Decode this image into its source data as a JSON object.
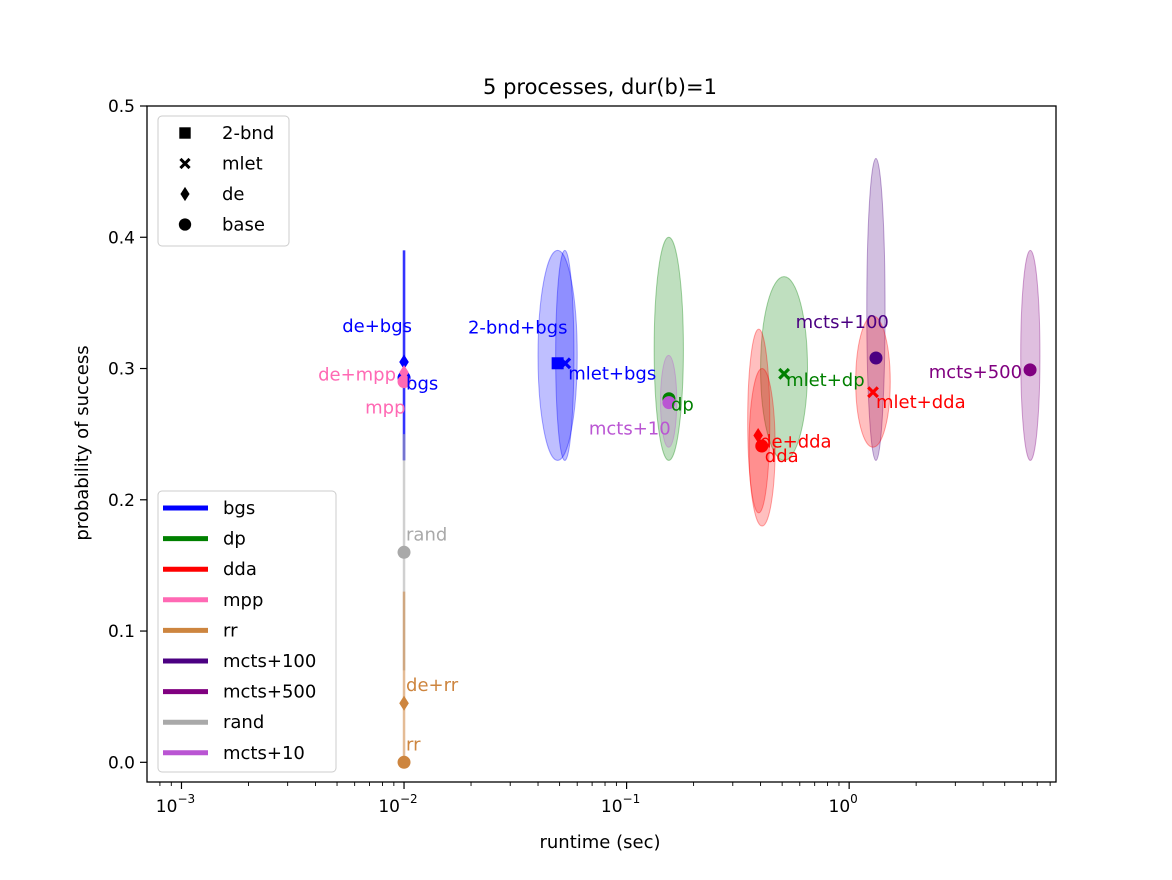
{
  "chart_data": {
    "type": "scatter",
    "title": "5 processes, dur(b)=1",
    "xlabel": "runtime (sec)",
    "ylabel": "probability of success",
    "xscale": "log",
    "xlim": [
      0.0007,
      8.5
    ],
    "ylim": [
      -0.015,
      0.5
    ],
    "xticks": [
      {
        "value": 0.001,
        "base": "10",
        "exp": "−3"
      },
      {
        "value": 0.01,
        "base": "10",
        "exp": "−2"
      },
      {
        "value": 0.1,
        "base": "10",
        "exp": "−1"
      },
      {
        "value": 1,
        "base": "10",
        "exp": "0"
      }
    ],
    "yticks": [
      {
        "value": 0.0,
        "label": "0.0"
      },
      {
        "value": 0.1,
        "label": "0.1"
      },
      {
        "value": 0.2,
        "label": "0.2"
      },
      {
        "value": 0.3,
        "label": "0.3"
      },
      {
        "value": 0.4,
        "label": "0.4"
      },
      {
        "value": 0.5,
        "label": "0.5"
      }
    ],
    "marker_legend": {
      "placement": "top-left",
      "entries": [
        {
          "marker": "square",
          "label": "2-bnd"
        },
        {
          "marker": "x",
          "label": "mlet"
        },
        {
          "marker": "diamond",
          "label": "de"
        },
        {
          "marker": "circle",
          "label": "base"
        }
      ]
    },
    "color_legend": {
      "placement": "lower-left",
      "entries": [
        {
          "label": "bgs",
          "color": "#0000ff"
        },
        {
          "label": "dp",
          "color": "#008000"
        },
        {
          "label": "dda",
          "color": "#ff0000"
        },
        {
          "label": "mpp",
          "color": "#ff69b4"
        },
        {
          "label": "rr",
          "color": "#cd853f"
        },
        {
          "label": "mcts+100",
          "color": "#4b0082"
        },
        {
          "label": "mcts+500",
          "color": "#800080"
        },
        {
          "label": "rand",
          "color": "#a9a9a9"
        },
        {
          "label": "mcts+10",
          "color": "#ba55d3"
        }
      ]
    },
    "points": [
      {
        "label": "de+bgs",
        "algo": "bgs",
        "marker": "diamond",
        "x": 0.01,
        "y": 0.305,
        "x_err": [
          0.01,
          0.01
        ],
        "y_err": [
          0.23,
          0.39
        ],
        "label_pos": "above-left"
      },
      {
        "label": "bgs",
        "algo": "bgs",
        "marker": "circle",
        "x": 0.01,
        "y": 0.293,
        "x_err": [
          0.01,
          0.01
        ],
        "y_err": [
          0.23,
          0.39
        ],
        "label_pos": "right"
      },
      {
        "label": "de+mpp",
        "algo": "mpp",
        "marker": "diamond",
        "x": 0.01,
        "y": 0.297,
        "label_pos": "left"
      },
      {
        "label": "mpp",
        "algo": "mpp",
        "marker": "circle",
        "x": 0.01,
        "y": 0.29,
        "label_pos": "below-left"
      },
      {
        "label": "2-bnd+bgs",
        "algo": "bgs",
        "marker": "square",
        "x": 0.049,
        "y": 0.304,
        "x_err": [
          0.04,
          0.06
        ],
        "y_err": [
          0.23,
          0.39
        ],
        "label_pos": "above-left"
      },
      {
        "label": "mlet+bgs",
        "algo": "bgs",
        "marker": "x",
        "x": 0.053,
        "y": 0.304,
        "x_err": [
          0.048,
          0.058
        ],
        "y_err": [
          0.23,
          0.39
        ],
        "label_pos": "below-right"
      },
      {
        "label": "dp",
        "algo": "dp",
        "marker": "circle",
        "x": 0.155,
        "y": 0.277,
        "x_err": [
          0.133,
          0.18
        ],
        "y_err": [
          0.23,
          0.4
        ],
        "label_pos": "right"
      },
      {
        "label": "mcts+10",
        "algo": "mcts+10",
        "marker": "circle",
        "x": 0.155,
        "y": 0.274,
        "x_err": [
          0.142,
          0.168
        ],
        "y_err": [
          0.24,
          0.31
        ],
        "label_pos": "below-left"
      },
      {
        "label": "mlet+dp",
        "algo": "dp",
        "marker": "x",
        "x": 0.51,
        "y": 0.296,
        "x_err": [
          0.4,
          0.65
        ],
        "y_err": [
          0.23,
          0.37
        ],
        "label_pos": "right"
      },
      {
        "label": "de+dda",
        "algo": "dda",
        "marker": "diamond",
        "x": 0.39,
        "y": 0.249,
        "x_err": [
          0.35,
          0.44
        ],
        "y_err": [
          0.19,
          0.33
        ],
        "label_pos": "right"
      },
      {
        "label": "dda",
        "algo": "dda",
        "marker": "circle",
        "x": 0.405,
        "y": 0.241,
        "x_err": [
          0.355,
          0.465
        ],
        "y_err": [
          0.18,
          0.3
        ],
        "label_pos": "below-right"
      },
      {
        "label": "mcts+100",
        "algo": "mcts+100",
        "marker": "circle",
        "x": 1.32,
        "y": 0.308,
        "x_err": [
          1.2,
          1.45
        ],
        "y_err": [
          0.23,
          0.46
        ],
        "label_pos": "above-left"
      },
      {
        "label": "mlet+dda",
        "algo": "dda",
        "marker": "x",
        "x": 1.28,
        "y": 0.282,
        "x_err": [
          1.07,
          1.53
        ],
        "y_err": [
          0.24,
          0.34
        ],
        "label_pos": "below-right"
      },
      {
        "label": "mcts+500",
        "algo": "mcts+500",
        "marker": "circle",
        "x": 6.5,
        "y": 0.299,
        "x_err": [
          5.9,
          7.2
        ],
        "y_err": [
          0.23,
          0.39
        ],
        "label_pos": "left"
      },
      {
        "label": "rand",
        "algo": "rand",
        "marker": "circle",
        "x": 0.01,
        "y": 0.16,
        "x_err": [
          0.01,
          0.01
        ],
        "y_err": [
          0.07,
          0.25
        ],
        "label_pos": "above-right"
      },
      {
        "label": "de+rr",
        "algo": "rr",
        "marker": "diamond",
        "x": 0.01,
        "y": 0.045,
        "x_err": [
          0.01,
          0.01
        ],
        "y_err": [
          0.0,
          0.13
        ],
        "label_pos": "above-right"
      },
      {
        "label": "rr",
        "algo": "rr",
        "marker": "circle",
        "x": 0.01,
        "y": 0.0,
        "label_pos": "above-right"
      }
    ]
  }
}
